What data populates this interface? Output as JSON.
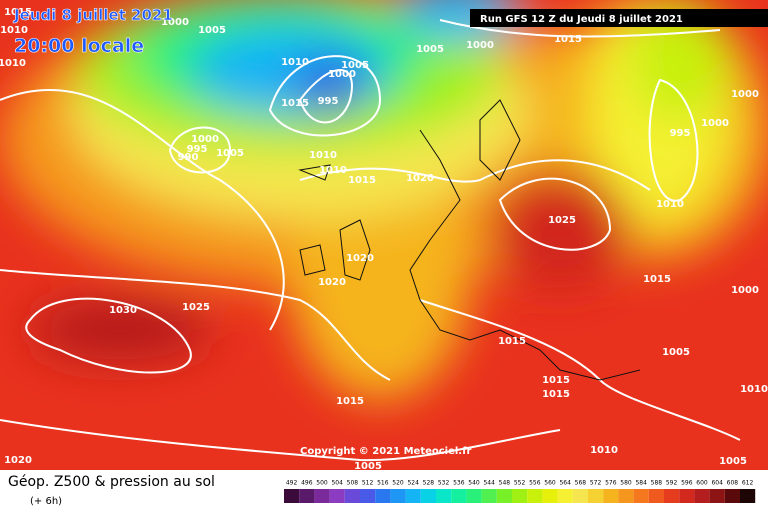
{
  "header": {
    "date": "Jeudi 8 juillet 2021",
    "time": "20:00 locale",
    "run": "Run GFS 12 Z du Jeudi 8 juillet 2021"
  },
  "map": {
    "copyright": "Copyright © 2021 Meteociel.fr",
    "isobar_labels": [
      "1015",
      "1010",
      "1000",
      "1005",
      "1010",
      "1010",
      "1005",
      "1000",
      "995",
      "1015",
      "1000",
      "995",
      "990",
      "1005",
      "1010",
      "1010",
      "1015",
      "1020",
      "1005",
      "1000",
      "1015",
      "995",
      "1000",
      "1000",
      "1025",
      "1010",
      "1020",
      "1020",
      "1015",
      "1000",
      "1030",
      "1025",
      "1015",
      "1005",
      "1015",
      "1015",
      "1015",
      "1010",
      "1005",
      "1020",
      "1005",
      "1010"
    ]
  },
  "legend": {
    "title": "Géop. Z500 & pression au sol",
    "lead": "(+ 6h)",
    "scale": [
      492,
      496,
      500,
      504,
      508,
      512,
      516,
      520,
      524,
      528,
      532,
      536,
      540,
      544,
      548,
      552,
      556,
      560,
      564,
      568,
      572,
      576,
      580,
      584,
      588,
      592,
      596,
      600,
      604,
      608,
      612
    ],
    "colors": [
      "#3a0a3a",
      "#5a1a6a",
      "#7a2a9a",
      "#8c3cc0",
      "#6a4ad8",
      "#4a5ae8",
      "#2a78f0",
      "#1e96f5",
      "#14b4f5",
      "#0ad2e6",
      "#0ae6c8",
      "#14f0a0",
      "#28f078",
      "#50f050",
      "#78f028",
      "#a0f014",
      "#c8f00a",
      "#e6f00a",
      "#f5f032",
      "#f5e650",
      "#f5d232",
      "#f5b41e",
      "#f5961e",
      "#f5781e",
      "#f05a1e",
      "#e63c1e",
      "#d2281e",
      "#b41e1e",
      "#8c1414",
      "#5a0a0a",
      "#1e0505"
    ]
  }
}
